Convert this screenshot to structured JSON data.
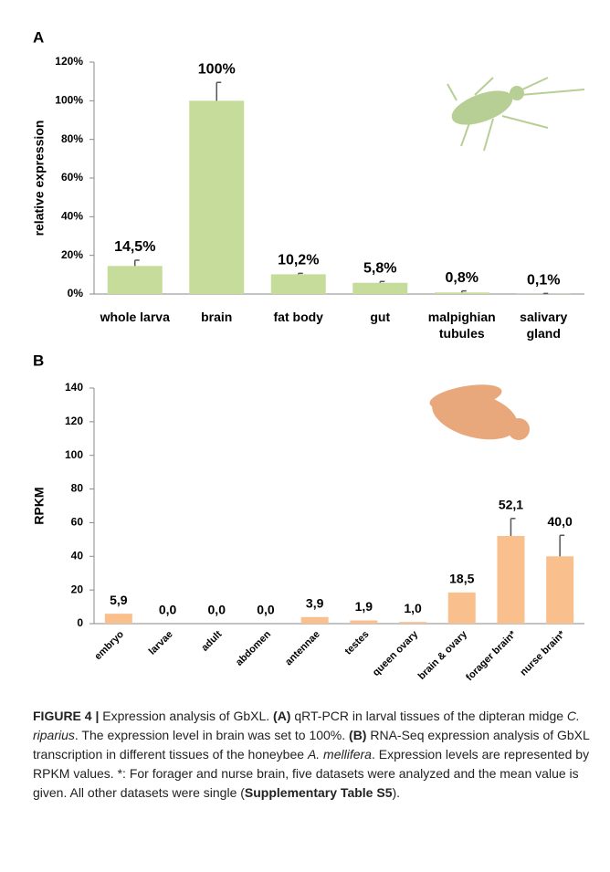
{
  "chart_data": [
    {
      "type": "bar",
      "panel": "A",
      "y_label": "relative expression",
      "categories": [
        "whole larva",
        "brain",
        "fat body",
        "gut",
        "malpighian tubules",
        "salivary gland"
      ],
      "values": [
        14.5,
        100,
        10.2,
        5.8,
        0.8,
        0.1
      ],
      "value_labels": [
        "14,5%",
        "100%",
        "10,2%",
        "5,8%",
        "0,8%",
        "0,1%"
      ],
      "errors": [
        3,
        9.5,
        0.5,
        0.7,
        0.8,
        0.2
      ],
      "color": "#c5dc9a",
      "ylim": [
        0,
        120
      ],
      "yticks": [
        {
          "value": 0,
          "label": "0%"
        },
        {
          "value": 20,
          "label": "20%"
        },
        {
          "value": 40,
          "label": "40%"
        },
        {
          "value": 60,
          "label": "60%"
        },
        {
          "value": 80,
          "label": "80%"
        },
        {
          "value": 100,
          "label": "100%"
        },
        {
          "value": 120,
          "label": "120%"
        }
      ],
      "grid": false
    },
    {
      "type": "bar",
      "panel": "B",
      "y_label": "RPKM",
      "categories": [
        "embryo",
        "larvae",
        "adult",
        "abdomen",
        "antennae",
        "testes",
        "queen ovary",
        "brain & ovary",
        "forager brain*",
        "nurse brain*"
      ],
      "values": [
        5.9,
        0.0,
        0.0,
        0.0,
        3.9,
        1.9,
        1.0,
        18.5,
        52.1,
        40.0
      ],
      "value_labels": [
        "5,9",
        "0,0",
        "0,0",
        "0,0",
        "3,9",
        "1,9",
        "1,0",
        "18,5",
        "52,1",
        "40,0"
      ],
      "errors": [
        null,
        null,
        null,
        null,
        null,
        null,
        null,
        null,
        10.4,
        12.5
      ],
      "color": "#f9c08e",
      "ylim": [
        0,
        140
      ],
      "yticks": [
        0,
        20,
        40,
        60,
        80,
        100,
        120,
        140
      ],
      "grid": false
    }
  ],
  "caption": {
    "parts": [
      "FIGURE 4 |",
      " Expression analysis of GbXL. ",
      "(A)",
      " qRT-PCR in larval tissues of the dipteran midge ",
      "C. riparius",
      ". The expression level in brain was set to 100%. ",
      "(B)",
      " RNA-Seq expression analysis of GbXL transcription in different tissues of the honeybee ",
      "A. mellifera",
      ". Expression levels are represented by RPKM values. *: For forager and nurse brain, five datasets were analyzed and the mean value is given. All other datasets were single (",
      "Supplementary Table S5",
      ")."
    ]
  }
}
